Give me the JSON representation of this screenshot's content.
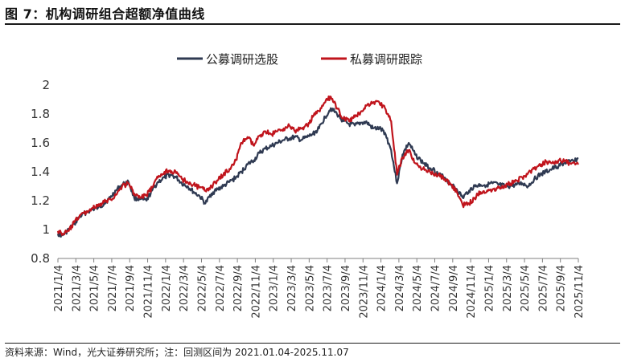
{
  "header": {
    "title": "图 7：机构调研组合超额净值曲线"
  },
  "footer": {
    "source": "资料来源：Wind，光大证券研究所；注：回测区间为 2021.01.04-2025.11.07"
  },
  "chart_data": {
    "type": "line",
    "title": "",
    "xlabel": "",
    "ylabel": "",
    "ylim": [
      0.8,
      2.0
    ],
    "yticks": [
      "0.8",
      "1",
      "1.2",
      "1.4",
      "1.6",
      "1.8",
      "2"
    ],
    "x_tick_labels": [
      "2021/1/4",
      "2021/3/4",
      "2021/5/4",
      "2021/7/4",
      "2021/9/4",
      "2021/11/4",
      "2022/1/4",
      "2022/3/4",
      "2022/5/4",
      "2022/7/4",
      "2022/9/4",
      "2022/11/4",
      "2023/1/4",
      "2023/3/4",
      "2023/5/4",
      "2023/7/4",
      "2023/9/4",
      "2023/11/4",
      "2024/1/4",
      "2024/3/4",
      "2024/5/4",
      "2024/7/4",
      "2024/9/4",
      "2024/11/4",
      "2025/1/4",
      "2025/3/4",
      "2025/5/4",
      "2025/7/4",
      "2025/9/4",
      "2025/11/4"
    ],
    "grid": false,
    "legend_position": "top-center",
    "x": [
      "2021-01-04",
      "2021-01-20",
      "2021-02-10",
      "2021-03-01",
      "2021-03-20",
      "2021-04-10",
      "2021-05-01",
      "2021-05-20",
      "2021-06-10",
      "2021-07-01",
      "2021-07-20",
      "2021-08-10",
      "2021-09-01",
      "2021-09-20",
      "2021-10-10",
      "2021-11-01",
      "2021-11-20",
      "2021-12-10",
      "2022-01-01",
      "2022-01-20",
      "2022-02-10",
      "2022-03-01",
      "2022-03-20",
      "2022-04-10",
      "2022-05-01",
      "2022-05-20",
      "2022-06-10",
      "2022-07-01",
      "2022-07-20",
      "2022-08-10",
      "2022-09-01",
      "2022-09-20",
      "2022-10-10",
      "2022-11-01",
      "2022-11-20",
      "2022-12-10",
      "2023-01-01",
      "2023-01-20",
      "2023-02-10",
      "2023-03-01",
      "2023-03-20",
      "2023-04-10",
      "2023-05-01",
      "2023-05-20",
      "2023-06-10",
      "2023-07-01",
      "2023-07-20",
      "2023-08-10",
      "2023-09-01",
      "2023-09-20",
      "2023-10-10",
      "2023-11-01",
      "2023-11-20",
      "2023-12-10",
      "2024-01-01",
      "2024-01-20",
      "2024-02-10",
      "2024-03-01",
      "2024-03-20",
      "2024-04-10",
      "2024-05-01",
      "2024-05-20",
      "2024-06-10",
      "2024-07-01",
      "2024-07-20",
      "2024-08-10",
      "2024-09-01",
      "2024-09-20",
      "2024-10-10",
      "2024-11-01",
      "2024-11-20",
      "2024-12-10",
      "2025-01-01",
      "2025-01-20",
      "2025-02-10",
      "2025-03-01",
      "2025-03-20",
      "2025-04-10",
      "2025-05-01",
      "2025-05-20",
      "2025-06-10",
      "2025-07-01",
      "2025-07-20",
      "2025-08-10",
      "2025-09-01",
      "2025-09-20",
      "2025-10-10",
      "2025-11-07"
    ],
    "series": [
      {
        "name": "公募调研选股",
        "color": "#2f3a52",
        "values": [
          0.97,
          0.96,
          1.0,
          1.04,
          1.09,
          1.12,
          1.14,
          1.15,
          1.18,
          1.22,
          1.27,
          1.31,
          1.33,
          1.22,
          1.21,
          1.2,
          1.27,
          1.33,
          1.36,
          1.38,
          1.36,
          1.32,
          1.3,
          1.26,
          1.23,
          1.18,
          1.25,
          1.28,
          1.3,
          1.33,
          1.36,
          1.4,
          1.45,
          1.48,
          1.53,
          1.56,
          1.58,
          1.6,
          1.62,
          1.63,
          1.64,
          1.62,
          1.64,
          1.66,
          1.7,
          1.78,
          1.84,
          1.8,
          1.75,
          1.73,
          1.72,
          1.74,
          1.74,
          1.7,
          1.7,
          1.67,
          1.55,
          1.32,
          1.52,
          1.6,
          1.52,
          1.48,
          1.44,
          1.42,
          1.38,
          1.36,
          1.31,
          1.28,
          1.22,
          1.27,
          1.3,
          1.31,
          1.31,
          1.32,
          1.31,
          1.3,
          1.3,
          1.31,
          1.32,
          1.3,
          1.35,
          1.38,
          1.4,
          1.42,
          1.44,
          1.46,
          1.47,
          1.49
        ]
      },
      {
        "name": "私募调研跟踪",
        "color": "#c0141c",
        "values": [
          0.99,
          0.97,
          0.99,
          1.05,
          1.1,
          1.12,
          1.15,
          1.16,
          1.19,
          1.21,
          1.24,
          1.3,
          1.32,
          1.25,
          1.22,
          1.24,
          1.29,
          1.36,
          1.4,
          1.41,
          1.39,
          1.35,
          1.33,
          1.31,
          1.29,
          1.27,
          1.3,
          1.34,
          1.38,
          1.42,
          1.48,
          1.6,
          1.64,
          1.58,
          1.65,
          1.68,
          1.66,
          1.68,
          1.7,
          1.72,
          1.68,
          1.7,
          1.72,
          1.78,
          1.82,
          1.88,
          1.92,
          1.84,
          1.77,
          1.75,
          1.78,
          1.82,
          1.86,
          1.88,
          1.88,
          1.84,
          1.75,
          1.38,
          1.5,
          1.55,
          1.46,
          1.43,
          1.4,
          1.39,
          1.38,
          1.35,
          1.31,
          1.26,
          1.17,
          1.18,
          1.22,
          1.26,
          1.27,
          1.28,
          1.29,
          1.3,
          1.32,
          1.34,
          1.36,
          1.39,
          1.42,
          1.44,
          1.47,
          1.46,
          1.48,
          1.47,
          1.46,
          1.45
        ]
      }
    ]
  }
}
